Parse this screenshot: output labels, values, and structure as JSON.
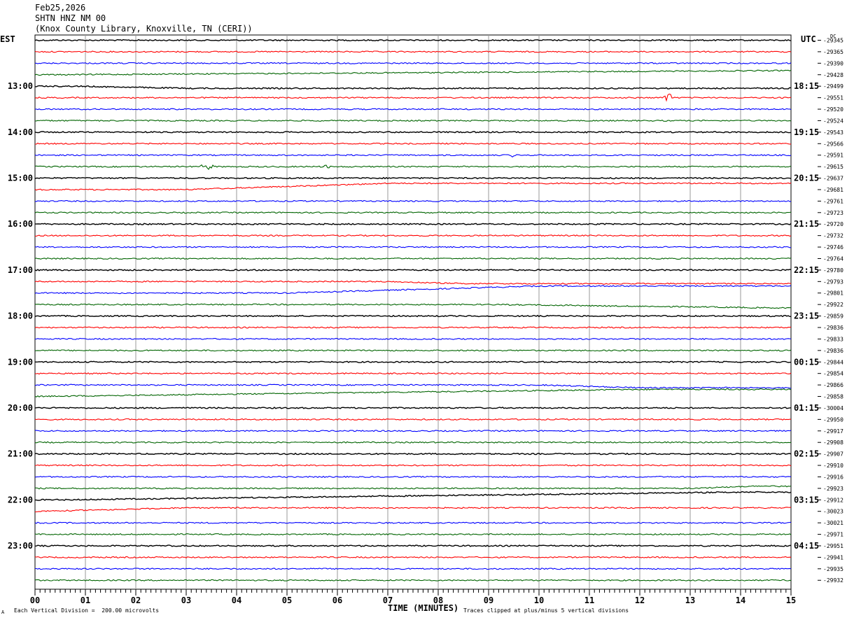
{
  "header": {
    "date": "Feb25,2026",
    "station": "SHTN HNZ NM 00",
    "location": "(Knox County Library, Knoxville, TN (CERI))"
  },
  "left_zone": "EST",
  "right_zone": "UTC",
  "right_top_tag": "DC",
  "footer": {
    "scale_note": "Each Vertical Division =  200.00 microvolts",
    "xlabel": "TIME (MINUTES)",
    "clip_note": "Traces clipped at plus/minus 5 vertical divisions",
    "corner_mark": "A"
  },
  "chart_data": {
    "type": "line",
    "title": "",
    "xlabel": "TIME (MINUTES)",
    "ylabel": "",
    "xlim": [
      0,
      15
    ],
    "x_ticks": [
      "00",
      "01",
      "02",
      "03",
      "04",
      "05",
      "06",
      "07",
      "08",
      "09",
      "10",
      "11",
      "12",
      "13",
      "14",
      "15"
    ],
    "grid": true,
    "trace_colors": [
      "#000000",
      "#ff0000",
      "#0000ff",
      "#006400"
    ],
    "left_hour_labels": [
      "13:00",
      "14:00",
      "15:00",
      "16:00",
      "17:00",
      "18:00",
      "19:00",
      "20:00",
      "21:00",
      "22:00",
      "23:00"
    ],
    "right_hour_labels": [
      "18:15",
      "19:15",
      "20:15",
      "21:15",
      "22:15",
      "23:15",
      "00:15",
      "01:15",
      "02:15",
      "03:15",
      "04:15"
    ],
    "dc_offsets": [
      "-29345",
      "-29365",
      "-29390",
      "-29428",
      "-29499",
      "-29551",
      "-29520",
      "-29524",
      "-29543",
      "-29566",
      "-29591",
      "-29615",
      "-29637",
      "-29681",
      "-29761",
      "-29723",
      "-29720",
      "-29732",
      "-29746",
      "-29764",
      "-29780",
      "-29793",
      "-29801",
      "-29922",
      "-29859",
      "-29836",
      "-29833",
      "-29836",
      "-29844",
      "-29854",
      "-29866",
      "-29858",
      "-30004",
      "-29950",
      "-29917",
      "-29908",
      "-29907",
      "-29910",
      "-29916",
      "-29923",
      "-29912",
      "-30023",
      "-30021",
      "-29971",
      "-29951",
      "-29941",
      "-29935",
      "-29932"
    ],
    "events": [
      {
        "trace": 5,
        "minute": 12.58,
        "amplitude": 8
      },
      {
        "trace": 10,
        "minute": 9.5,
        "amplitude": 3
      },
      {
        "trace": 11,
        "minute": 3.4,
        "amplitude": 8
      },
      {
        "trace": 11,
        "minute": 5.8,
        "amplitude": 3
      }
    ],
    "drifts": [
      {
        "trace": 3,
        "from": 0.5,
        "to": 15,
        "delta": -6
      },
      {
        "trace": 4,
        "from": 0.8,
        "to": 3,
        "delta": 3
      },
      {
        "trace": 13,
        "from": 3,
        "to": 7,
        "delta": -9
      },
      {
        "trace": 21,
        "from": 6.8,
        "to": 8.5,
        "delta": 3
      },
      {
        "trace": 22,
        "from": 5,
        "to": 10,
        "delta": -10
      },
      {
        "trace": 23,
        "from": 9,
        "to": 15,
        "delta": 5
      },
      {
        "trace": 30,
        "from": 10,
        "to": 12,
        "delta": 4
      },
      {
        "trace": 31,
        "from": 0,
        "to": 12,
        "delta": -10
      },
      {
        "trace": 39,
        "from": 13,
        "to": 14.3,
        "delta": -3
      },
      {
        "trace": 40,
        "from": 0.5,
        "to": 14,
        "delta": -11
      },
      {
        "trace": 41,
        "from": 0,
        "to": 3,
        "delta": -5
      }
    ]
  }
}
